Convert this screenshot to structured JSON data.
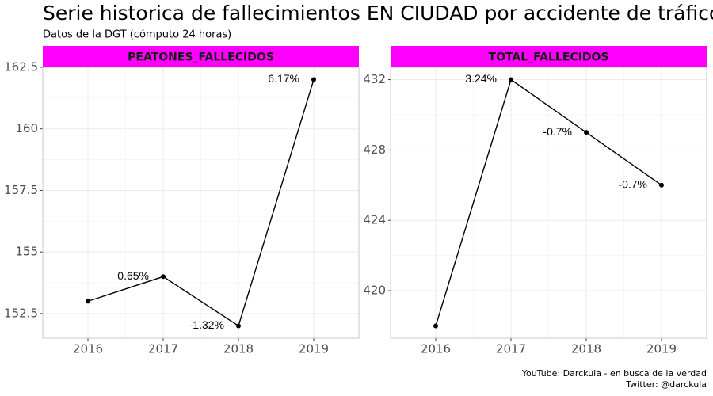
{
  "title": "Serie historica de fallecimientos EN CIUDAD por accidente de tráfico",
  "subtitle": "Datos de la DGT (cómputo 24 horas)",
  "caption": [
    "YouTube: Darckula - en busca de la verdad",
    "Twitter: @darckula"
  ],
  "chart_data": [
    {
      "type": "line",
      "title": "PEATONES_FALLECIDOS",
      "x": [
        2016,
        2017,
        2018,
        2019
      ],
      "values": [
        153,
        154,
        152,
        162
      ],
      "annotations": [
        null,
        "0.65%",
        "-1.32%",
        "6.17%"
      ],
      "color": "#000000",
      "strip_color": "#ff00ff",
      "grid": true,
      "xlim": [
        2015.4,
        2019.6
      ],
      "xticks": [
        2016,
        2017,
        2018,
        2019
      ],
      "ylim": [
        151.5,
        162.5
      ],
      "yticks": [
        152.5,
        155.0,
        157.5,
        160.0,
        162.5
      ]
    },
    {
      "type": "line",
      "title": "TOTAL_FALLECIDOS",
      "x": [
        2016,
        2017,
        2018,
        2019
      ],
      "values": [
        418,
        432,
        429,
        426
      ],
      "annotations": [
        null,
        "3.24%",
        "-0.7%",
        "-0.7%"
      ],
      "color": "#000000",
      "strip_color": "#ff00ff",
      "grid": true,
      "xlim": [
        2015.4,
        2019.6
      ],
      "xticks": [
        2016,
        2017,
        2018,
        2019
      ],
      "ylim": [
        417.3,
        432.7
      ],
      "yticks": [
        420,
        424,
        428,
        432
      ]
    }
  ]
}
